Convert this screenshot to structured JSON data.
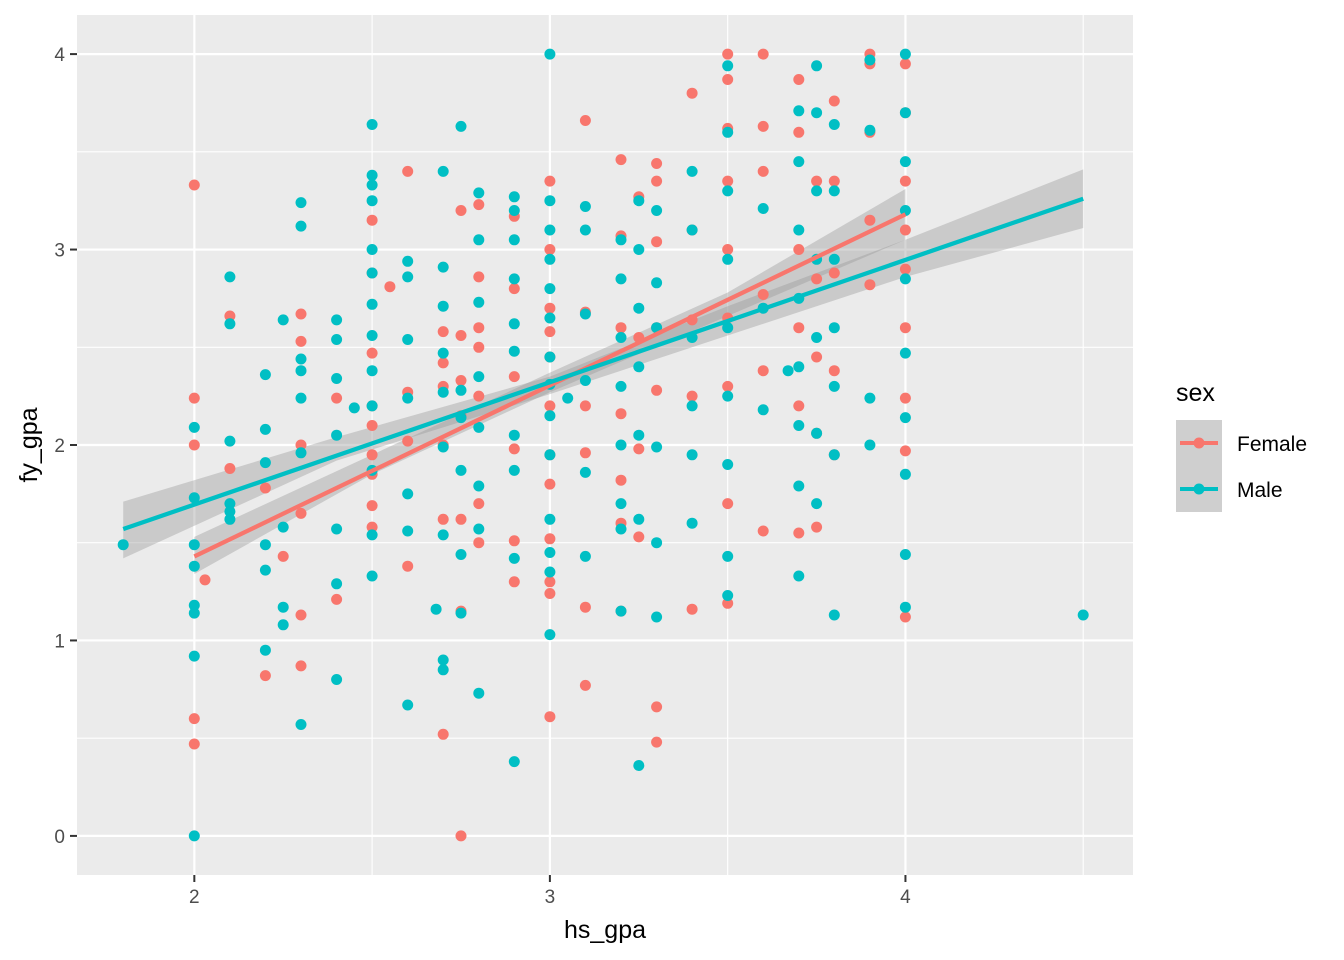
{
  "chart_data": {
    "type": "scatter",
    "xlabel": "hs_gpa",
    "ylabel": "fy_gpa",
    "xlim": [
      1.67,
      4.64
    ],
    "ylim": [
      -0.2,
      4.2
    ],
    "x_ticks": [
      2,
      3,
      4
    ],
    "x_tick_labels": [
      "2",
      "3",
      "4"
    ],
    "y_ticks": [
      0,
      1,
      2,
      3,
      4
    ],
    "y_tick_labels": [
      "0",
      "1",
      "2",
      "3",
      "4"
    ],
    "grid": true,
    "legend": {
      "title": "sex",
      "placement": "right"
    },
    "colors": {
      "Female": "#f8766d",
      "Male": "#00bfc4",
      "panel": "#ebebeb",
      "ribbon": "#999999"
    },
    "series": [
      {
        "name": "Female",
        "color": "#f8766d",
        "trend": {
          "x": [
            2.0,
            4.0
          ],
          "y": [
            1.43,
            3.18
          ]
        },
        "ribbon": {
          "x": [
            2.0,
            2.5,
            3.0,
            3.5,
            4.0
          ],
          "lower": [
            1.34,
            1.85,
            2.27,
            2.66,
            3.05
          ],
          "upper": [
            1.53,
            1.95,
            2.37,
            2.78,
            3.31
          ]
        },
        "x": [
          2.0,
          2.0,
          2.0,
          2.0,
          2.0,
          2.03,
          2.1,
          2.1,
          2.2,
          2.2,
          2.25,
          2.3,
          2.3,
          2.3,
          2.3,
          2.3,
          2.3,
          2.4,
          2.4,
          2.5,
          2.5,
          2.5,
          2.5,
          2.5,
          2.5,
          2.5,
          2.5,
          2.5,
          2.55,
          2.6,
          2.6,
          2.6,
          2.6,
          2.7,
          2.7,
          2.7,
          2.7,
          2.7,
          2.7,
          2.75,
          2.75,
          2.75,
          2.75,
          2.75,
          2.75,
          2.75,
          2.8,
          2.8,
          2.8,
          2.8,
          2.8,
          2.8,
          2.8,
          2.9,
          2.9,
          2.9,
          2.9,
          2.9,
          2.9,
          3.0,
          3.0,
          3.0,
          3.0,
          3.0,
          3.0,
          3.0,
          3.0,
          3.0,
          3.0,
          3.0,
          3.0,
          3.1,
          3.1,
          3.1,
          3.1,
          3.1,
          3.1,
          3.2,
          3.2,
          3.2,
          3.2,
          3.2,
          3.2,
          3.2,
          3.25,
          3.25,
          3.25,
          3.25,
          3.3,
          3.3,
          3.3,
          3.3,
          3.3,
          3.3,
          3.3,
          3.4,
          3.4,
          3.4,
          3.4,
          3.4,
          3.5,
          3.5,
          3.5,
          3.5,
          3.5,
          3.5,
          3.5,
          3.5,
          3.5,
          3.6,
          3.6,
          3.6,
          3.6,
          3.6,
          3.6,
          3.7,
          3.7,
          3.7,
          3.7,
          3.7,
          3.7,
          3.75,
          3.75,
          3.75,
          3.75,
          3.75,
          3.8,
          3.8,
          3.8,
          3.8,
          3.8,
          3.9,
          3.9,
          3.9,
          3.9,
          3.9,
          4.0,
          4.0,
          4.0,
          4.0,
          4.0,
          4.0,
          4.0,
          4.0,
          4.0
        ],
        "y": [
          3.33,
          2.24,
          2.0,
          0.6,
          0.47,
          1.31,
          2.66,
          1.88,
          1.78,
          0.82,
          1.43,
          2.67,
          2.53,
          2.0,
          1.65,
          1.13,
          0.87,
          2.24,
          1.21,
          3.15,
          2.88,
          2.47,
          2.2,
          2.1,
          1.95,
          1.85,
          1.69,
          1.58,
          2.81,
          3.4,
          2.27,
          2.02,
          1.38,
          2.58,
          2.42,
          2.3,
          2.0,
          1.62,
          0.52,
          3.2,
          2.56,
          2.33,
          2.15,
          1.62,
          1.15,
          0.0,
          3.23,
          2.86,
          2.6,
          2.5,
          2.25,
          1.7,
          1.5,
          3.17,
          2.8,
          2.35,
          1.98,
          1.51,
          1.3,
          3.35,
          3.0,
          2.7,
          2.45,
          2.2,
          1.95,
          1.8,
          1.52,
          1.3,
          1.24,
          0.61,
          2.58,
          3.66,
          2.68,
          2.2,
          1.96,
          1.17,
          0.77,
          3.46,
          3.07,
          2.6,
          2.16,
          1.82,
          1.6,
          1.15,
          3.27,
          2.55,
          1.98,
          1.53,
          3.44,
          3.35,
          3.04,
          2.6,
          2.28,
          0.66,
          0.48,
          3.8,
          3.1,
          2.64,
          2.25,
          1.16,
          4.0,
          3.87,
          3.62,
          3.35,
          3.0,
          2.65,
          2.3,
          1.7,
          1.19,
          4.0,
          3.63,
          3.4,
          2.77,
          2.38,
          1.56,
          3.87,
          3.6,
          3.0,
          2.6,
          2.2,
          1.55,
          3.35,
          2.85,
          2.45,
          2.06,
          1.58,
          3.76,
          3.35,
          2.88,
          2.38,
          1.95,
          4.0,
          3.95,
          3.6,
          3.15,
          2.82,
          3.95,
          3.7,
          3.35,
          3.1,
          2.9,
          2.6,
          2.24,
          1.97,
          1.12
        ]
      },
      {
        "name": "Male",
        "color": "#00bfc4",
        "trend": {
          "x": [
            1.8,
            4.5
          ],
          "y": [
            1.57,
            3.26
          ]
        },
        "ribbon": {
          "x": [
            1.8,
            2.4,
            3.0,
            3.5,
            4.0,
            4.5
          ],
          "lower": [
            1.42,
            1.92,
            2.26,
            2.56,
            2.86,
            3.11
          ],
          "upper": [
            1.71,
            2.04,
            2.35,
            2.71,
            3.05,
            3.41
          ]
        },
        "x": [
          1.8,
          2.0,
          2.0,
          2.0,
          2.0,
          2.0,
          2.0,
          2.0,
          2.0,
          2.1,
          2.1,
          2.1,
          2.1,
          2.1,
          2.1,
          2.2,
          2.2,
          2.2,
          2.2,
          2.2,
          2.2,
          2.25,
          2.25,
          2.25,
          2.25,
          2.3,
          2.3,
          2.3,
          2.3,
          2.3,
          2.3,
          2.3,
          2.4,
          2.4,
          2.4,
          2.4,
          2.4,
          2.4,
          2.4,
          2.45,
          2.5,
          2.5,
          2.5,
          2.5,
          2.5,
          2.5,
          2.5,
          2.5,
          2.5,
          2.5,
          2.5,
          2.5,
          2.5,
          2.6,
          2.6,
          2.6,
          2.6,
          2.6,
          2.6,
          2.6,
          2.68,
          2.7,
          2.7,
          2.7,
          2.7,
          2.7,
          2.7,
          2.7,
          2.7,
          2.7,
          2.75,
          2.75,
          2.75,
          2.75,
          2.75,
          2.75,
          2.8,
          2.8,
          2.8,
          2.8,
          2.8,
          2.8,
          2.8,
          2.8,
          2.9,
          2.9,
          2.9,
          2.9,
          2.9,
          2.9,
          2.9,
          2.9,
          2.9,
          2.9,
          3.0,
          3.0,
          3.0,
          3.0,
          3.0,
          3.0,
          3.0,
          3.0,
          3.0,
          3.0,
          3.0,
          3.0,
          3.0,
          3.0,
          3.05,
          3.1,
          3.1,
          3.1,
          3.1,
          3.1,
          3.1,
          3.2,
          3.2,
          3.2,
          3.2,
          3.2,
          3.2,
          3.2,
          3.2,
          3.25,
          3.25,
          3.25,
          3.25,
          3.25,
          3.25,
          3.25,
          3.3,
          3.3,
          3.3,
          3.3,
          3.3,
          3.3,
          3.4,
          3.4,
          3.4,
          3.4,
          3.4,
          3.4,
          3.5,
          3.5,
          3.5,
          3.5,
          3.5,
          3.5,
          3.5,
          3.5,
          3.5,
          3.6,
          3.6,
          3.6,
          3.67,
          3.7,
          3.7,
          3.7,
          3.7,
          3.7,
          3.7,
          3.7,
          3.7,
          3.75,
          3.75,
          3.75,
          3.75,
          3.75,
          3.75,
          3.75,
          3.8,
          3.8,
          3.8,
          3.8,
          3.8,
          3.8,
          3.8,
          3.9,
          3.9,
          3.9,
          3.9,
          4.0,
          4.0,
          4.0,
          4.0,
          4.0,
          4.0,
          4.0,
          4.0,
          4.0,
          4.0,
          4.5
        ],
        "y": [
          1.49,
          2.09,
          1.73,
          1.49,
          1.38,
          1.18,
          1.14,
          0.92,
          0.0,
          2.86,
          2.02,
          1.7,
          1.62,
          2.62,
          1.66,
          2.36,
          2.08,
          1.91,
          1.49,
          1.36,
          0.95,
          2.64,
          1.58,
          1.17,
          1.08,
          3.24,
          3.12,
          2.44,
          2.38,
          2.24,
          1.96,
          0.57,
          2.64,
          2.54,
          2.34,
          2.05,
          1.57,
          1.29,
          0.8,
          2.19,
          3.64,
          3.38,
          3.33,
          3.25,
          3.0,
          2.88,
          2.72,
          2.56,
          2.38,
          2.2,
          1.87,
          1.54,
          1.33,
          2.94,
          2.86,
          2.54,
          2.24,
          1.75,
          1.56,
          0.67,
          1.16,
          3.4,
          2.91,
          2.71,
          2.47,
          2.27,
          1.99,
          1.54,
          0.9,
          0.85,
          3.63,
          2.28,
          2.14,
          1.87,
          1.44,
          1.14,
          3.29,
          3.05,
          2.73,
          2.35,
          2.09,
          1.79,
          1.57,
          0.73,
          3.27,
          3.2,
          3.05,
          2.85,
          2.62,
          2.48,
          2.05,
          1.87,
          1.42,
          0.38,
          4.0,
          3.25,
          3.1,
          2.95,
          2.8,
          2.65,
          2.45,
          2.31,
          2.15,
          1.95,
          1.62,
          1.45,
          1.35,
          1.03,
          2.24,
          3.22,
          3.1,
          2.67,
          2.33,
          1.86,
          1.43,
          3.05,
          2.85,
          2.55,
          2.3,
          2.0,
          1.7,
          1.57,
          1.15,
          3.25,
          3.0,
          2.7,
          2.4,
          2.05,
          1.62,
          0.36,
          3.2,
          2.83,
          2.6,
          1.99,
          1.5,
          1.12,
          3.4,
          3.1,
          2.55,
          2.2,
          1.95,
          1.6,
          3.94,
          3.6,
          3.3,
          2.95,
          2.6,
          2.25,
          1.9,
          1.43,
          1.23,
          3.21,
          2.7,
          2.18,
          2.38,
          3.71,
          3.45,
          3.1,
          2.75,
          2.4,
          2.1,
          1.79,
          1.33,
          3.94,
          3.7,
          3.3,
          2.95,
          2.55,
          2.06,
          1.7,
          3.64,
          3.3,
          2.95,
          2.6,
          2.3,
          1.95,
          1.13,
          3.97,
          3.61,
          2.24,
          2.0,
          4.0,
          3.7,
          3.45,
          3.2,
          2.85,
          2.47,
          2.14,
          1.85,
          1.44,
          1.17,
          1.13
        ]
      }
    ]
  }
}
